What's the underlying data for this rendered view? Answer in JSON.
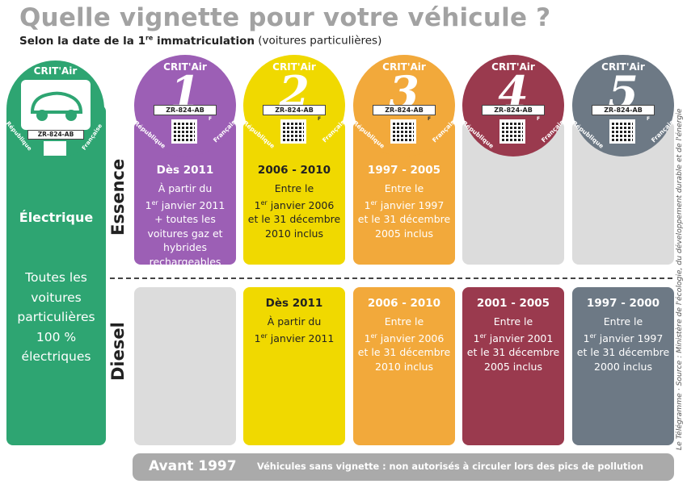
{
  "header": {
    "title": "Quelle vignette pour votre véhicule ?",
    "subtitle_main": "Selon la date de la 1",
    "subtitle_sup": "re",
    "subtitle_bold_end": " immatriculation",
    "subtitle_rest": " (voitures particulières)"
  },
  "source": "Le Télégramme · Source : Ministère de l'écologie, du développement durable et de l'énergie",
  "sticker_common": {
    "brand": "CRIT'Air",
    "plate": "ZR-824-AB",
    "plate_suffix": "F",
    "republique": "République",
    "francaise": "Française"
  },
  "row_labels": {
    "essence": "Essence",
    "diesel": "Diesel"
  },
  "electrique": {
    "title": "Électrique",
    "line1": "Toutes les",
    "line2": "voitures",
    "line3": "particulières",
    "line4": "100 %",
    "line5": "électriques"
  },
  "categories": [
    {
      "number": "1",
      "color": "#9c5fb5",
      "essence": {
        "period": "Dès 2011",
        "l1": "À partir du",
        "l2a": "1",
        "l2sup": "er",
        "l2b": " janvier 2011",
        "l3": "+ toutes les",
        "l4": "voitures gaz et",
        "l5": "hybrides",
        "l6": "rechargeables"
      }
    },
    {
      "number": "2",
      "color": "#f0d900",
      "essence": {
        "period": "2006 - 2010",
        "l1": "Entre le",
        "l2a": "1",
        "l2sup": "er",
        "l2b": " janvier 2006",
        "l3": "et le 31 décembre",
        "l4": "2010 inclus"
      },
      "diesel": {
        "period": "Dès 2011",
        "l1": "À partir du",
        "l2a": "1",
        "l2sup": "er",
        "l2b": " janvier 2011"
      }
    },
    {
      "number": "3",
      "color": "#f2a93b",
      "essence": {
        "period": "1997 - 2005",
        "l1": "Entre le",
        "l2a": "1",
        "l2sup": "er",
        "l2b": " janvier 1997",
        "l3": "et le 31 décembre",
        "l4": "2005 inclus"
      },
      "diesel": {
        "period": "2006 - 2010",
        "l1": "Entre le",
        "l2a": "1",
        "l2sup": "er",
        "l2b": " janvier 2006",
        "l3": "et le 31 décembre",
        "l4": "2010 inclus"
      }
    },
    {
      "number": "4",
      "color": "#9a3a4e",
      "diesel": {
        "period": "2001 - 2005",
        "l1": "Entre le",
        "l2a": "1",
        "l2sup": "er",
        "l2b": " janvier 2001",
        "l3": "et le 31 décembre",
        "l4": "2005 inclus"
      }
    },
    {
      "number": "5",
      "color": "#6d7985",
      "diesel": {
        "period": "1997 - 2000",
        "l1": "Entre le",
        "l2a": "1",
        "l2sup": "er",
        "l2b": " janvier 1997",
        "l3": "et le 31 décembre",
        "l4": "2000 inclus"
      }
    }
  ],
  "footer": {
    "before": "Avant 1997",
    "note": "Véhicules sans vignette : non autorisés à circuler lors des pics de pollution"
  },
  "colors": {
    "electric": "#2ea572",
    "grey_panel": "#dcdcdc",
    "footer": "#aaaaaa",
    "title": "#a2a2a2"
  }
}
